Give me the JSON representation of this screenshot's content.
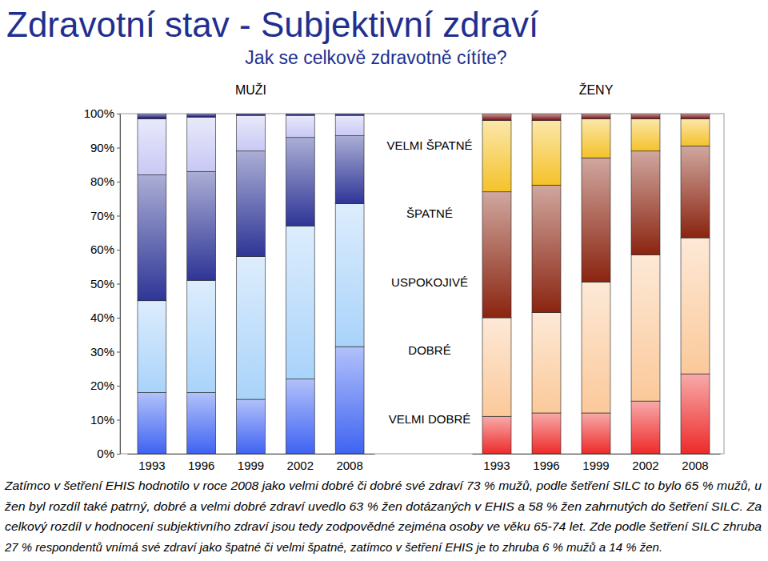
{
  "chart_data": {
    "type": "bar",
    "stacked": true,
    "title": "Zdravotní stav - Subjektivní zdraví",
    "subtitle": "Jak se celkově zdravotně cítíte?",
    "annotations": [
      "MUŽI",
      "ŽENY"
    ],
    "categories": [
      "1993",
      "1996",
      "1999",
      "2002",
      "2008",
      "1993",
      "1996",
      "1999",
      "2002",
      "2008"
    ],
    "series": [
      {
        "name": "VELMI DOBRÉ",
        "values": [
          18,
          18,
          16,
          22,
          31.5,
          11,
          12,
          12,
          15.5,
          23.5
        ],
        "colors": [
          "#3f63f2",
          "#3f63f2",
          "#3f63f2",
          "#3f63f2",
          "#3f63f2",
          "#ee2a2a",
          "#ee2a2a",
          "#ee2a2a",
          "#ee2a2a",
          "#ee2a2a"
        ]
      },
      {
        "name": "DOBRÉ",
        "values": [
          27,
          33,
          42,
          45,
          42,
          29,
          29.5,
          38.5,
          43,
          40
        ],
        "colors": [
          "#a9d3fa",
          "#a9d3fa",
          "#a9d3fa",
          "#a9d3fa",
          "#a9d3fa",
          "#fbc99a",
          "#fbc99a",
          "#fbc99a",
          "#fbc99a",
          "#fbc99a"
        ]
      },
      {
        "name": "USPOKOJIVÉ",
        "values": [
          37,
          32,
          31,
          26,
          20,
          37,
          37.5,
          36.5,
          30.5,
          27
        ],
        "colors": [
          "#2e3596",
          "#2e3596",
          "#2e3596",
          "#2e3596",
          "#2e3596",
          "#8a2410",
          "#8a2410",
          "#8a2410",
          "#8a2410",
          "#8a2410"
        ]
      },
      {
        "name": "ŠPATNÉ",
        "values": [
          16.5,
          16,
          10.5,
          6.5,
          6,
          21,
          19,
          11.5,
          9.5,
          8
        ],
        "colors": [
          "#c8c8f5",
          "#c8c8f5",
          "#c8c8f5",
          "#c8c8f5",
          "#c8c8f5",
          "#f5c22a",
          "#f5c22a",
          "#f5c22a",
          "#f5c22a",
          "#f5c22a"
        ]
      },
      {
        "name": "VELMI ŠPATNÉ",
        "values": [
          1.5,
          1,
          0.5,
          0.5,
          0.5,
          2,
          2,
          1.5,
          1.5,
          1.5
        ],
        "colors": [
          "#0b0b70",
          "#0b0b70",
          "#0b0b70",
          "#0b0b70",
          "#0b0b70",
          "#7a0d0d",
          "#7a0d0d",
          "#7a0d0d",
          "#7a0d0d",
          "#7a0d0d"
        ]
      }
    ],
    "ylim": [
      0,
      100
    ],
    "yticks": [
      {
        "value": 0,
        "label": "0%"
      },
      {
        "value": 10,
        "label": "10%"
      },
      {
        "value": 20,
        "label": "20%"
      },
      {
        "value": 30,
        "label": "30%"
      },
      {
        "value": 40,
        "label": "40%"
      },
      {
        "value": 50,
        "label": "50%"
      },
      {
        "value": 60,
        "label": "60%"
      },
      {
        "value": 70,
        "label": "70%"
      },
      {
        "value": 80,
        "label": "80%"
      },
      {
        "value": 90,
        "label": "90%"
      },
      {
        "value": 100,
        "label": "100%"
      }
    ],
    "grid": false,
    "legend": "center",
    "caption": [
      "Zatímco v šetření EHIS hodnotilo v roce 2008 jako velmi dobré či dobré své zdraví 73 % mužů, podle šetření SILC to bylo 65 % mužů, u",
      "žen byl rozdíl také patrný, dobré a velmi dobré zdraví uvedlo 63 % žen dotázaných v EHIS a 58 % žen zahrnutých do šetření SILC. Za",
      "celkový rozdíl v hodnocení subjektivního zdraví jsou tedy zodpovědné zejména osoby ve věku 65-74 let. Zde podle šetření SILC zhruba",
      "27 % respondentů vnímá své zdraví jako špatné či velmi špatné, zatímco v šetření EHIS je to zhruba 6 % mužů a 14 % žen."
    ]
  }
}
